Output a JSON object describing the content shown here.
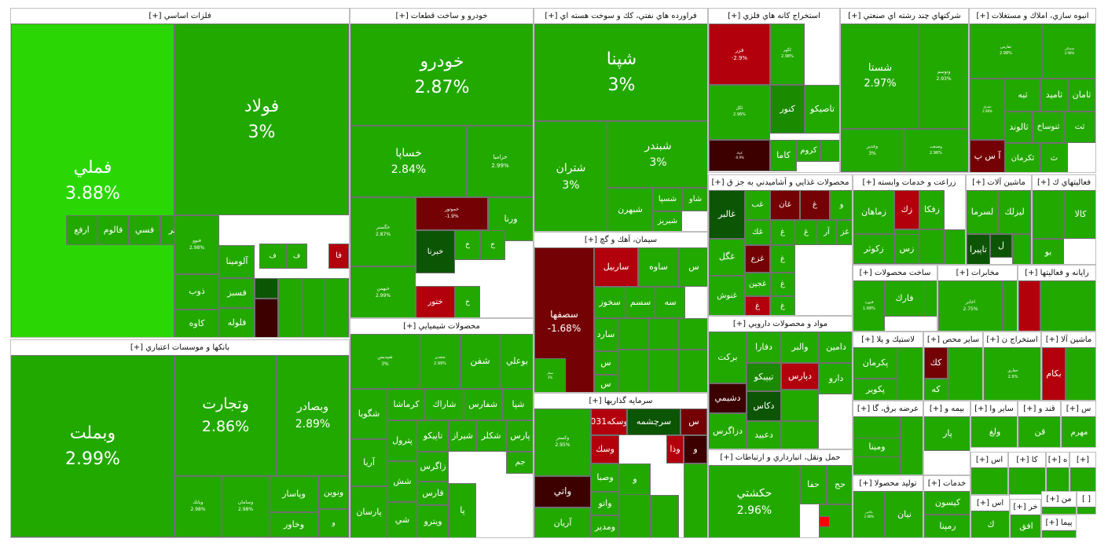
{
  "colors": {
    "up_max": "#2ad704",
    "up": "#22a900",
    "up_dark": "#1a8a00",
    "flat_dark": "#0c5505",
    "down": "#b3000d",
    "down_dark": "#740204",
    "down_deep": "#3c0000",
    "down_light": "#ff0000"
  },
  "chart_data": {
    "type": "treemap",
    "sectors": [
      {
        "name": "فلزات اساسي [+]",
        "tiles": [
          {
            "name": "فملي",
            "change": "3.88%",
            "color": "up_max"
          },
          {
            "name": "فولاد",
            "change": "3%"
          },
          {
            "name": "فجر"
          },
          {
            "name": "فسي"
          },
          {
            "name": "فالوم"
          },
          {
            "name": "ارفع"
          },
          {
            "name": "فنوو",
            "change": "2.98%"
          },
          {
            "name": "فا",
            "color": "down"
          },
          {
            "name": "ف"
          },
          {
            "name": "ف"
          },
          {
            "name": "آلومينا"
          },
          {
            "name": "ذوب"
          },
          {
            "name": "فسبز"
          },
          {
            "name": "كاوه"
          },
          {
            "name": "فلوله"
          }
        ]
      },
      {
        "name": "بانكها و موسسات اعتباري [+]",
        "tiles": [
          {
            "name": "وبملت",
            "change": "2.99%"
          },
          {
            "name": "وتجارت",
            "change": "2.86%"
          },
          {
            "name": "وبصادر",
            "change": "2.89%"
          },
          {
            "name": "وپاسار"
          },
          {
            "name": "ونوين"
          },
          {
            "name": "وخاور"
          },
          {
            "name": "وبانك",
            "change": "2.98%"
          },
          {
            "name": "وسامان",
            "change": "2.98%"
          },
          {
            "name": "و"
          }
        ]
      },
      {
        "name": "خودرو و ساخت قطعات [+]",
        "tiles": [
          {
            "name": "خودرو",
            "change": "2.87%"
          },
          {
            "name": "خساپا",
            "change": "2.84%"
          },
          {
            "name": "خزاميا",
            "change": "2.99%"
          },
          {
            "name": "خگستر",
            "change": "2.87%"
          },
          {
            "name": "خبهمن",
            "change": "2.99%"
          },
          {
            "name": "خموتور",
            "change": "-1.9%",
            "color": "down_dark"
          },
          {
            "name": "ورنا"
          },
          {
            "name": "خبرنا",
            "color": "flat_dark"
          },
          {
            "name": "ختور",
            "color": "down"
          },
          {
            "name": "خ"
          },
          {
            "name": "خ"
          },
          {
            "name": "خ"
          }
        ]
      },
      {
        "name": "فراورده هاي نفتي، كك و سوخت هسته اي [+]",
        "tiles": [
          {
            "name": "شپنا",
            "change": "3%"
          },
          {
            "name": "شتران",
            "change": "3%"
          },
          {
            "name": "شبندر",
            "change": "3%"
          },
          {
            "name": "شبهرن"
          },
          {
            "name": "شسپا"
          },
          {
            "name": "شاو"
          },
          {
            "name": "شبريز"
          }
        ]
      },
      {
        "name": "استخراج كانه هاي فلزي [+]",
        "tiles": [
          {
            "name": "فزر",
            "change": "-2.9%",
            "color": "down"
          },
          {
            "name": "كگهر",
            "change": "2.98%"
          },
          {
            "name": "كگل",
            "change": "2.96%"
          },
          {
            "name": "كنور",
            "color": "up_dark"
          },
          {
            "name": "تاصيكو"
          },
          {
            "name": "كچاد",
            "change": "-0.9%",
            "color": "down_deep"
          },
          {
            "name": "كاما"
          },
          {
            "name": "كروم"
          }
        ]
      },
      {
        "name": "شركتهاي چند رشته اي صنعتي [+]",
        "tiles": [
          {
            "name": "شستا",
            "change": "2.97%"
          },
          {
            "name": "وتوسم",
            "change": "2.93%"
          },
          {
            "name": "وغدير",
            "change": "3%"
          },
          {
            "name": "وصنعت",
            "change": "2.96%"
          }
        ]
      },
      {
        "name": "انبوه سازي، املاك و مستغلات [+]",
        "tiles": [
          {
            "name": "ثفارس",
            "change": "2.98%"
          },
          {
            "name": "ثمسكن",
            "change": "2.98%"
          },
          {
            "name": "ثشرق",
            "change": "2.98%"
          },
          {
            "name": "ثبه"
          },
          {
            "name": "ثامید"
          },
          {
            "name": "ثامان"
          },
          {
            "name": "ثالوند"
          },
          {
            "name": "ثنوساخ"
          },
          {
            "name": "ثت"
          },
          {
            "name": "آ س پ",
            "color": "down_dark"
          },
          {
            "name": "ثكرمان"
          },
          {
            "name": "ث"
          }
        ]
      },
      {
        "name": "محصولات غذايي و آشاميدني به جز ق [+]",
        "tiles": [
          {
            "name": "غالبر",
            "color": "flat_dark"
          },
          {
            "name": "غگل"
          },
          {
            "name": "غنوش"
          },
          {
            "name": "غب"
          },
          {
            "name": "غان",
            "color": "down_dark"
          },
          {
            "name": "غ",
            "color": "down_dark"
          },
          {
            "name": "و"
          },
          {
            "name": "غك"
          },
          {
            "name": "غ"
          },
          {
            "name": "غ"
          },
          {
            "name": "آر"
          },
          {
            "name": "غز"
          },
          {
            "name": "غزع",
            "color": "down_dark"
          },
          {
            "name": "غ"
          },
          {
            "name": "غجين"
          },
          {
            "name": "غ"
          },
          {
            "name": "غ",
            "color": "down"
          },
          {
            "name": "غ"
          }
        ]
      },
      {
        "name": "زراعت و خدمات وابسته [+]",
        "tiles": [
          {
            "name": "زماهان"
          },
          {
            "name": "زك",
            "color": "down"
          },
          {
            "name": "زفكا"
          },
          {
            "name": "زكوثر"
          },
          {
            "name": "زس"
          }
        ]
      },
      {
        "name": "ماشين آلات [+]",
        "tiles": [
          {
            "name": "لسرما"
          },
          {
            "name": "ليزلك"
          },
          {
            "name": "تاپيرا",
            "color": "flat_dark"
          },
          {
            "name": "ل",
            "color": "flat_dark"
          }
        ]
      },
      {
        "name": "فعاليتهاي ك [+]",
        "tiles": [
          {
            "name": "كالا"
          },
          {
            "name": "بو"
          }
        ]
      },
      {
        "name": "سيمان، آهك و گچ [+]",
        "tiles": [
          {
            "name": "سصفها",
            "change": "-1.68%",
            "color": "down_dark"
          },
          {
            "name": "ساربيل",
            "color": "down"
          },
          {
            "name": "ساوه"
          },
          {
            "name": "س"
          },
          {
            "name": "سخوز"
          },
          {
            "name": "سسم"
          },
          {
            "name": "سه"
          },
          {
            "name": "سفار",
            "change": "3%"
          },
          {
            "name": "سارد"
          },
          {
            "name": "س"
          },
          {
            "name": "س"
          }
        ]
      },
      {
        "name": "مواد و محصولات دارويي [+]",
        "tiles": [
          {
            "name": "دامين"
          },
          {
            "name": "والبر"
          },
          {
            "name": "دفارا"
          },
          {
            "name": "بركت"
          },
          {
            "name": "دارو"
          },
          {
            "name": "دپارس",
            "color": "down"
          },
          {
            "name": "تيپيكو",
            "color": "up_dark"
          },
          {
            "name": "دشيمي",
            "color": "down_deep"
          },
          {
            "name": "دكاس",
            "color": "flat_dark"
          },
          {
            "name": "دعبيد"
          },
          {
            "name": "دزاگرس"
          }
        ]
      },
      {
        "name": "ساخت محصولات [+]",
        "tiles": [
          {
            "name": "فارك"
          },
          {
            "name": "فنورد",
            "change": "1.68%"
          }
        ]
      },
      {
        "name": "مخابرات [+]",
        "tiles": [
          {
            "name": "اخابر",
            "change": "2.75%"
          }
        ]
      },
      {
        "name": "رايانه و فعاليتها [+]",
        "tiles": []
      },
      {
        "name": "محصولات شيميايي [+]",
        "tiles": [
          {
            "name": "شپديس",
            "change": "3%"
          },
          {
            "name": "شغدير",
            "change": "2.99%"
          },
          {
            "name": "شفن"
          },
          {
            "name": "بوعلي"
          },
          {
            "name": "شگويا"
          },
          {
            "name": "كرماشا"
          },
          {
            "name": "شاراك"
          },
          {
            "name": "شفارس"
          },
          {
            "name": "شپا"
          },
          {
            "name": "آريا"
          },
          {
            "name": "پترول"
          },
          {
            "name": "تاپيكو"
          },
          {
            "name": "شيراز"
          },
          {
            "name": "شكلر"
          },
          {
            "name": "پارس"
          },
          {
            "name": "جم"
          },
          {
            "name": "زاگرس"
          },
          {
            "name": "فارس"
          },
          {
            "name": "پارسان"
          },
          {
            "name": "ويترو"
          },
          {
            "name": "شش"
          },
          {
            "name": "شي"
          },
          {
            "name": "پا"
          }
        ]
      },
      {
        "name": "سرمايه گذاريها [+]",
        "tiles": [
          {
            "name": "وكستر",
            "change": "2.95%"
          },
          {
            "name": "وسكه031",
            "color": "down"
          },
          {
            "name": "سرچشمه",
            "color": "flat_dark"
          },
          {
            "name": "س",
            "color": "down_dark"
          },
          {
            "name": "وسك",
            "color": "down"
          },
          {
            "name": "وذا",
            "color": "down"
          },
          {
            "name": "و",
            "color": "down_deep"
          },
          {
            "name": "واتي",
            "color": "down_deep"
          },
          {
            "name": "وصبا"
          },
          {
            "name": "و"
          },
          {
            "name": "واتو"
          },
          {
            "name": "آريان"
          },
          {
            "name": "ومدير"
          }
        ]
      },
      {
        "name": "حمل ونقل، انبارداري و ارتباطات [+]",
        "tiles": [
          {
            "name": "حكشتي",
            "change": "2.96%"
          },
          {
            "name": "حفا"
          },
          {
            "name": "حج"
          }
        ]
      },
      {
        "name": "لاستيك و پلا [+]",
        "tiles": [
          {
            "name": "پكرمان"
          },
          {
            "name": "پكوير"
          }
        ]
      },
      {
        "name": "سایر محص [+]",
        "tiles": [
          {
            "name": "كك",
            "color": "down_dark"
          },
          {
            "name": "كه"
          }
        ]
      },
      {
        "name": "استخراج ن [+]",
        "tiles": [
          {
            "name": "حفاري",
            "change": "2.9%"
          }
        ]
      },
      {
        "name": "ماشين آلا [+]",
        "tiles": [
          {
            "name": "بكام",
            "color": "down"
          }
        ]
      },
      {
        "name": "عرضه برق، گا [+]",
        "tiles": [
          {
            "name": "دماوند"
          },
          {
            "name": "ومينا"
          }
        ]
      },
      {
        "name": "بيمه و [+]",
        "tiles": [
          {
            "name": "پار"
          }
        ]
      },
      {
        "name": "ساير وا [+]",
        "tiles": [
          {
            "name": "ولغ"
          }
        ]
      },
      {
        "name": "قند و [+]",
        "tiles": [
          {
            "name": "قن"
          }
        ]
      },
      {
        "name": "س [+]",
        "tiles": [
          {
            "name": "مهرم"
          }
        ]
      },
      {
        "name": "توليد محصولا [+]",
        "tiles": [
          {
            "name": "نيان"
          },
          {
            "name": "نكاس",
            "change": "2.98%"
          }
        ]
      },
      {
        "name": "خدمات [+]",
        "tiles": [
          {
            "name": "كيسون"
          },
          {
            "name": "رمپنا"
          }
        ]
      },
      {
        "name": "اس [+]",
        "tiles": []
      },
      {
        "name": "كا [+]",
        "tiles": []
      },
      {
        "name": "ه [+]",
        "tiles": []
      },
      {
        "name": "[+]",
        "tiles": []
      },
      {
        "name": "اس [+]",
        "tiles": [
          {
            "name": "ك"
          }
        ]
      },
      {
        "name": "خر [+]",
        "tiles": [
          {
            "name": "افق"
          }
        ]
      },
      {
        "name": "من [+]",
        "tiles": []
      },
      {
        "name": "[ ]",
        "tiles": []
      },
      {
        "name": "پيما [+]",
        "tiles": []
      }
    ]
  }
}
